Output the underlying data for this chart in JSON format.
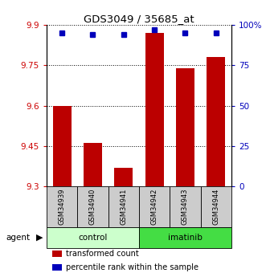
{
  "title": "GDS3049 / 35685_at",
  "samples": [
    "GSM34939",
    "GSM34940",
    "GSM34941",
    "GSM34942",
    "GSM34943",
    "GSM34944"
  ],
  "bar_values": [
    9.6,
    9.46,
    9.37,
    9.87,
    9.74,
    9.78
  ],
  "percentile_values": [
    95,
    94,
    94,
    97,
    95,
    95
  ],
  "ylim_left": [
    9.3,
    9.9
  ],
  "ylim_right": [
    0,
    100
  ],
  "yticks_left": [
    9.3,
    9.45,
    9.6,
    9.75,
    9.9
  ],
  "yticks_right": [
    0,
    25,
    50,
    75,
    100
  ],
  "ytick_labels_right": [
    "0",
    "25",
    "50",
    "75",
    "100%"
  ],
  "bar_color": "#bb0000",
  "dot_color": "#0000bb",
  "bar_width": 0.6,
  "groups": [
    {
      "label": "control",
      "indices": [
        0,
        1,
        2
      ],
      "color": "#ccffcc"
    },
    {
      "label": "imatinib",
      "indices": [
        3,
        4,
        5
      ],
      "color": "#44dd44"
    }
  ],
  "agent_label": "agent",
  "legend_items": [
    {
      "color": "#bb0000",
      "label": "transformed count"
    },
    {
      "color": "#0000bb",
      "label": "percentile rank within the sample"
    }
  ],
  "sample_box_color": "#cccccc",
  "tick_label_color_left": "#cc0000",
  "tick_label_color_right": "#0000bb"
}
